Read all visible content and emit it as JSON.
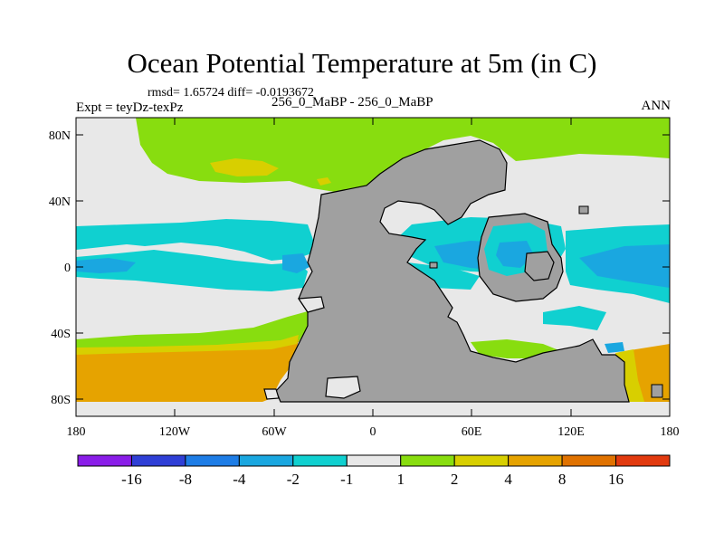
{
  "title": "Ocean Potential Temperature at 5m (in C)",
  "stats_line": "rmsd= 1.65724  diff= -0.0193672",
  "expt_label": "Expt = teyDz-texPz",
  "center_label": "256_0_MaBP - 256_0_MaBP",
  "season_label": "ANN",
  "x_ticks": [
    "180",
    "120W",
    "60W",
    "0",
    "60E",
    "120E",
    "180"
  ],
  "y_ticks": [
    "80N",
    "40N",
    "0",
    "40S",
    "80S"
  ],
  "colorbar": {
    "colors": [
      "#8a1de8",
      "#2f3fd6",
      "#1e7de6",
      "#1aa7e0",
      "#10d0d0",
      "#e8e8e8",
      "#88dd0f",
      "#d8cf00",
      "#e6a300",
      "#e07200",
      "#e23a0f"
    ],
    "labels": [
      "-16",
      "-8",
      "-4",
      "-2",
      "-1",
      "1",
      "2",
      "4",
      "8",
      "16"
    ]
  },
  "colors": {
    "land": "#a0a0a0",
    "neutral": "#e8e8e8",
    "cyan": "#10d0d0",
    "blue": "#1aa7e0",
    "green": "#88dd0f",
    "yellow": "#d8cf00",
    "orange": "#e6a300"
  }
}
